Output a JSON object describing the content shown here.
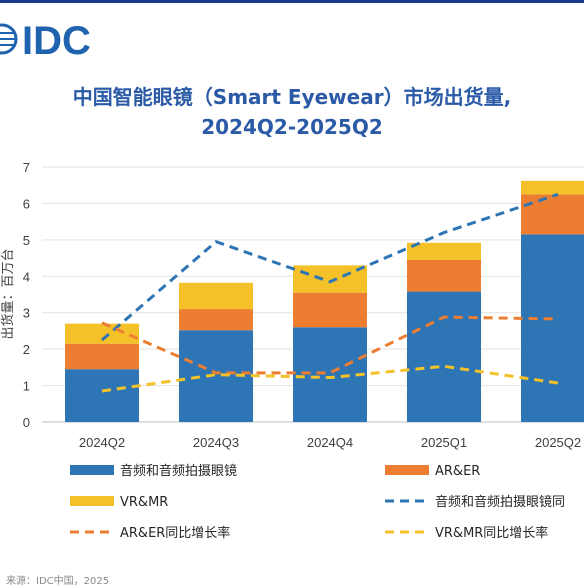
{
  "brand": "IDC",
  "title_line1": "中国智能眼镜（Smart Eyewear）市场出货量,",
  "title_line2": "2024Q2-2025Q2",
  "colors": {
    "brand": "#1f62ad",
    "audio": "#2e75b6",
    "arer": "#ed7d31",
    "vrmr": "#f5c128",
    "title": "#2b5aa6"
  },
  "chart_data": {
    "type": "bar",
    "stacked": true,
    "categories": [
      "2024Q2",
      "2024Q3",
      "2024Q4",
      "2025Q1",
      "2025Q2"
    ],
    "ylim": [
      0,
      7
    ],
    "yticks": [
      "0",
      "1",
      "2",
      "3",
      "4",
      "5",
      "6",
      "7"
    ],
    "ylabel": "出货量：百万台",
    "grid": true,
    "series": [
      {
        "name": "音频和音频拍摄眼镜",
        "kind": "bar",
        "values": [
          1.45,
          2.52,
          2.6,
          3.58,
          5.15
        ]
      },
      {
        "name": "AR&ER",
        "kind": "bar",
        "values": [
          0.7,
          0.58,
          0.95,
          0.87,
          1.1
        ]
      },
      {
        "name": "VR&MR",
        "kind": "bar",
        "values": [
          0.55,
          0.72,
          0.75,
          0.47,
          0.37
        ]
      },
      {
        "name": "音频和音频拍摄眼镜同比增长率",
        "kind": "line",
        "values": [
          2.25,
          4.95,
          3.85,
          5.2,
          6.25
        ]
      },
      {
        "name": "AR&ER同比增长率",
        "kind": "line",
        "values": [
          2.72,
          1.35,
          1.35,
          2.88,
          2.83
        ]
      },
      {
        "name": "VR&MR同比增长率",
        "kind": "line",
        "values": [
          0.85,
          1.3,
          1.22,
          1.53,
          1.07
        ]
      }
    ]
  },
  "legend": [
    "音频和音频拍摄眼镜",
    "AR&ER",
    "VR&MR",
    "音频和音频拍摄眼镜同",
    "AR&ER同比增长率",
    "VR&MR同比增长率"
  ],
  "footnote": "来源：IDC中国，2025"
}
